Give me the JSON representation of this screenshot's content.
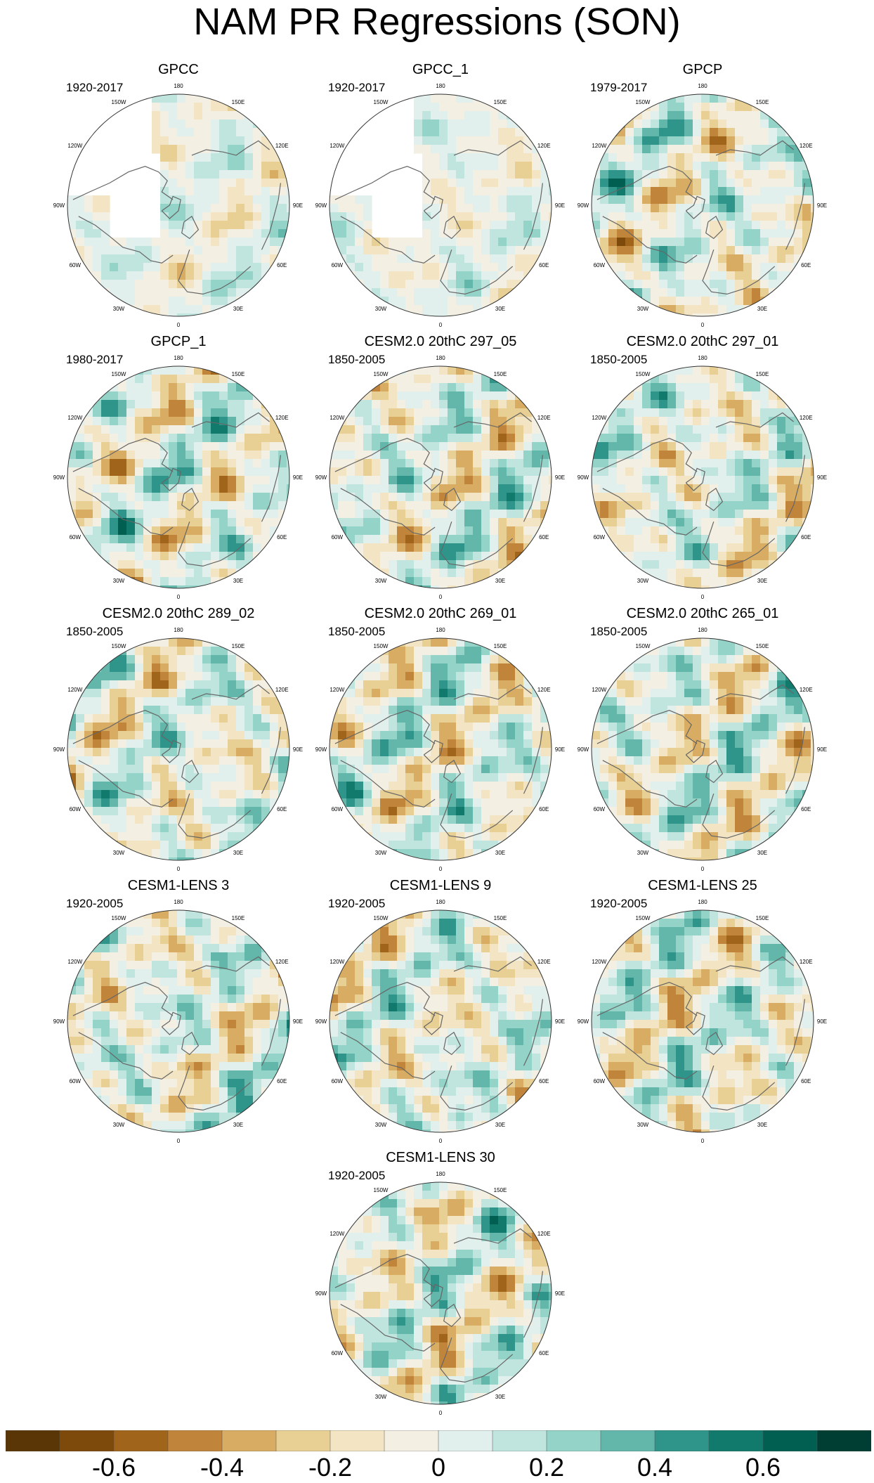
{
  "title": "NAM PR Regressions (SON)",
  "lon_labels": [
    "180",
    "150E",
    "120E",
    "90E",
    "60E",
    "30E",
    "0",
    "30W",
    "60W",
    "90W",
    "120W",
    "150W"
  ],
  "panels": [
    {
      "name": "GPCC",
      "years": "1920-2017",
      "missing": true,
      "pattern": 0
    },
    {
      "name": "GPCC_1",
      "years": "1920-2017",
      "missing": true,
      "pattern": 1
    },
    {
      "name": "GPCP",
      "years": "1979-2017",
      "missing": false,
      "pattern": 2
    },
    {
      "name": "GPCP_1",
      "years": "1980-2017",
      "missing": false,
      "pattern": 3
    },
    {
      "name": "CESM2.0 20thC 297_05",
      "years": "1850-2005",
      "missing": false,
      "pattern": 4
    },
    {
      "name": "CESM2.0 20thC 297_01",
      "years": "1850-2005",
      "missing": false,
      "pattern": 5
    },
    {
      "name": "CESM2.0 20thC 289_02",
      "years": "1850-2005",
      "missing": false,
      "pattern": 6
    },
    {
      "name": "CESM2.0 20thC 269_01",
      "years": "1850-2005",
      "missing": false,
      "pattern": 7
    },
    {
      "name": "CESM2.0 20thC 265_01",
      "years": "1850-2005",
      "missing": false,
      "pattern": 8
    },
    {
      "name": "CESM1-LENS 3",
      "years": "1920-2005",
      "missing": false,
      "pattern": 9
    },
    {
      "name": "CESM1-LENS 9",
      "years": "1920-2005",
      "missing": false,
      "pattern": 10
    },
    {
      "name": "CESM1-LENS 25",
      "years": "1920-2005",
      "missing": false,
      "pattern": 11
    },
    {
      "name": "CESM1-LENS 30",
      "years": "1920-2005",
      "missing": false,
      "pattern": 12
    }
  ],
  "colorbar": {
    "colors": [
      "#5a3505",
      "#7d4a0c",
      "#a0651b",
      "#c0853a",
      "#d8ad63",
      "#e8cf93",
      "#f3e5c4",
      "#f4efe3",
      "#e1efed",
      "#c0e5df",
      "#93d3c8",
      "#62b6aa",
      "#2f958a",
      "#117a6c",
      "#015f51",
      "#003d32"
    ],
    "labels": [
      "-0.6",
      "-0.4",
      "-0.2",
      "0",
      "0.2",
      "0.4",
      "0.6"
    ],
    "label_values": [
      -0.6,
      -0.4,
      -0.2,
      0,
      0.2,
      0.4,
      0.6
    ],
    "min": -0.8,
    "max": 0.8
  }
}
